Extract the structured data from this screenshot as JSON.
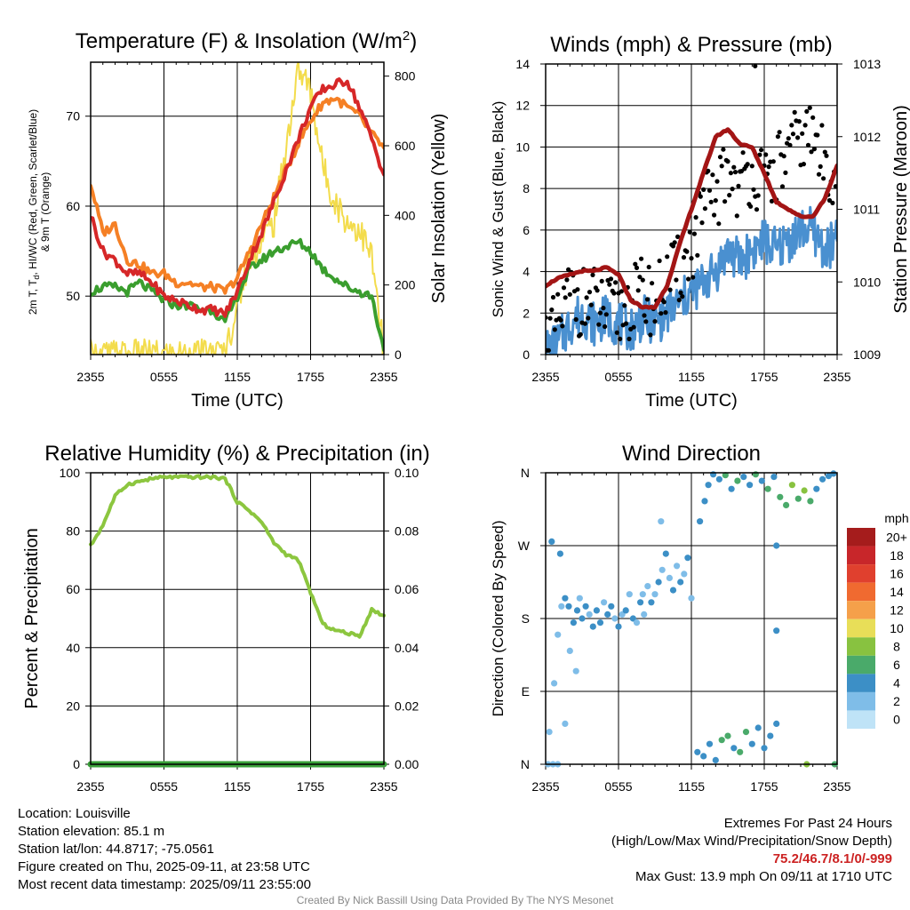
{
  "chart_data": [
    {
      "type": "line",
      "title": "Temperature (F) & Insolation (W/m²)",
      "title_parts": {
        "main": "Temperature (F) & Insolation (W/m",
        "sup": "2",
        "close": ")"
      },
      "xlabel": "Time (UTC)",
      "ylabel_left_lines": [
        "2m T, T",
        "d",
        ", HI/WC (Red, Green, Scarlet/Blue)",
        "& 9m T (Orange)"
      ],
      "ylabel_right": "Solar Insolation (Yellow)",
      "x_ticks": [
        "2355",
        "0555",
        "1155",
        "1755",
        "2355"
      ],
      "x": [
        0,
        1,
        2,
        3,
        4,
        5,
        6,
        7,
        8,
        9,
        10,
        11,
        12,
        13,
        14,
        15,
        16,
        17,
        18,
        19,
        20,
        21,
        22,
        23,
        24
      ],
      "xlim": [
        0,
        24
      ],
      "ylim_left": [
        43.5,
        76
      ],
      "yticks_left": [
        50,
        60,
        70
      ],
      "ylim_right": [
        0,
        840
      ],
      "yticks_right": [
        0,
        200,
        400,
        600,
        800
      ],
      "grid": true,
      "series": [
        {
          "axis": "left",
          "color": "#f58025",
          "values": [
            62.5,
            57,
            58,
            54,
            53.5,
            52.5,
            52.5,
            51.5,
            51.5,
            51,
            51,
            50.5,
            52,
            55,
            58,
            61,
            64,
            67,
            69.5,
            71.5,
            72,
            71,
            70,
            68,
            66.5
          ]
        },
        {
          "axis": "left",
          "color": "#d62728",
          "values": [
            59,
            55,
            54,
            52.5,
            52.5,
            51.5,
            50,
            49.5,
            49,
            48.5,
            48.5,
            48,
            50.5,
            54,
            57,
            60.5,
            64,
            67.5,
            71,
            73,
            73.5,
            74,
            71,
            67.5,
            63.5
          ]
        },
        {
          "axis": "left",
          "color": "#3a9e2e",
          "values": [
            50.5,
            51,
            51,
            50.5,
            51.5,
            50.5,
            49.5,
            49,
            49,
            48.5,
            48.5,
            47,
            50,
            53,
            54,
            55,
            55.5,
            56,
            55,
            53,
            52,
            51,
            50.5,
            50,
            44
          ]
        },
        {
          "axis": "right",
          "color": "#f3dc4c",
          "values": [
            0,
            0,
            0,
            0,
            0,
            0,
            0,
            0,
            0,
            0,
            0,
            5,
            140,
            280,
            330,
            380,
            600,
            820,
            760,
            540,
            440,
            380,
            360,
            280,
            0
          ]
        }
      ]
    },
    {
      "type": "line",
      "title": "Winds (mph) & Pressure (mb)",
      "xlabel": "Time (UTC)",
      "ylabel_left": "Sonic Wind & Gust (Blue, Black)",
      "ylabel_right": "Station Pressure (Maroon)",
      "x_ticks": [
        "2355",
        "0555",
        "1155",
        "1755",
        "2355"
      ],
      "x": [
        0,
        1,
        2,
        3,
        4,
        5,
        6,
        7,
        8,
        9,
        10,
        11,
        12,
        13,
        14,
        15,
        16,
        17,
        18,
        19,
        20,
        21,
        22,
        23,
        24
      ],
      "xlim": [
        0,
        24
      ],
      "ylim_left": [
        0,
        14
      ],
      "yticks_left": [
        0,
        2,
        4,
        6,
        8,
        10,
        12,
        14
      ],
      "ylim_right": [
        1009,
        1013
      ],
      "yticks_right": [
        1009,
        1010,
        1011,
        1012,
        1013
      ],
      "grid": true,
      "series": [
        {
          "name": "Sonic Wind",
          "axis": "left",
          "color": "#4a90d0",
          "values": [
            0.2,
            0.5,
            1.5,
            2,
            1.5,
            1.8,
            1.5,
            1.2,
            1.8,
            1.5,
            2,
            2.5,
            3,
            3.5,
            4,
            5,
            4.5,
            5,
            5.5,
            5,
            5.5,
            6,
            6,
            5,
            5.5
          ]
        },
        {
          "name": "Gust",
          "axis": "left",
          "color": "#000000",
          "values": [
            0.8,
            1.2,
            3,
            2.5,
            2.5,
            2,
            2,
            2.5,
            3,
            2.5,
            3.5,
            4,
            5,
            7,
            7.5,
            9,
            8,
            9,
            8,
            9,
            9.5,
            10.5,
            10.5,
            9,
            9
          ]
        },
        {
          "name": "Station Pressure",
          "axis": "right",
          "color": "#a31515",
          "values": [
            1009.95,
            1010.05,
            1010.1,
            1010.15,
            1010.15,
            1010.2,
            1010.1,
            1009.75,
            1009.65,
            1009.65,
            1009.95,
            1010.5,
            1011,
            1011.5,
            1012,
            1012.1,
            1011.9,
            1011.85,
            1011.5,
            1011.1,
            1011,
            1010.9,
            1010.9,
            1011.15,
            1011.6
          ]
        }
      ],
      "annotation_max_gust": {
        "x": 17.25,
        "y": 13.9
      }
    },
    {
      "type": "line",
      "title": "Relative Humidity (%) & Precipitation (in)",
      "ylabel_left": "Percent & Precipitation",
      "x_ticks": [
        "2355",
        "0555",
        "1155",
        "1755",
        "2355"
      ],
      "x": [
        0,
        1,
        2,
        3,
        4,
        5,
        6,
        7,
        8,
        9,
        10,
        11,
        12,
        13,
        14,
        15,
        16,
        17,
        18,
        19,
        20,
        21,
        22,
        23,
        24
      ],
      "xlim": [
        0,
        24
      ],
      "ylim_left": [
        0,
        100
      ],
      "yticks_left": [
        0,
        20,
        40,
        60,
        80,
        100
      ],
      "ylim_right": [
        0,
        0.1
      ],
      "yticks_right": [
        "0.00",
        "0.02",
        "0.04",
        "0.06",
        "0.08",
        "0.10"
      ],
      "grid": true,
      "series": [
        {
          "name": "Relative Humidity",
          "axis": "left",
          "color": "#8cc63f",
          "values": [
            75,
            82,
            92,
            96,
            97,
            98,
            98.5,
            98.5,
            98.5,
            98.5,
            98.5,
            98,
            90,
            87,
            83,
            76,
            72,
            70,
            59,
            48,
            46,
            45,
            44,
            53,
            51
          ]
        },
        {
          "name": "Precipitation",
          "axis": "right",
          "color": "#3aa03a",
          "values": [
            0,
            0,
            0,
            0,
            0,
            0,
            0,
            0,
            0,
            0,
            0,
            0,
            0,
            0,
            0,
            0,
            0,
            0,
            0,
            0,
            0,
            0,
            0,
            0,
            0
          ]
        }
      ]
    },
    {
      "type": "scatter",
      "title": "Wind Direction",
      "ylabel_left": "Direction (Colored By Speed)",
      "x_ticks": [
        "2355",
        "0555",
        "1155",
        "1755",
        "2355"
      ],
      "xlim": [
        0,
        24
      ],
      "yticks_labels": [
        "N",
        "E",
        "S",
        "W",
        "N"
      ],
      "ylim_degrees": [
        0,
        360
      ],
      "grid": true,
      "points": [
        [
          0.2,
          0,
          1
        ],
        [
          0.6,
          0,
          1
        ],
        [
          1.0,
          0,
          1
        ],
        [
          0.3,
          40,
          1
        ],
        [
          0.7,
          100,
          1
        ],
        [
          1.0,
          160,
          2
        ],
        [
          1.3,
          195,
          2
        ],
        [
          1.6,
          205,
          3
        ],
        [
          1.9,
          195,
          3
        ],
        [
          2.0,
          140,
          2
        ],
        [
          2.3,
          175,
          3
        ],
        [
          2.6,
          190,
          3
        ],
        [
          2.8,
          205,
          2
        ],
        [
          3.0,
          180,
          3
        ],
        [
          3.3,
          195,
          3
        ],
        [
          3.6,
          185,
          2
        ],
        [
          3.9,
          170,
          3
        ],
        [
          4.2,
          190,
          3
        ],
        [
          4.5,
          175,
          3
        ],
        [
          4.8,
          200,
          2
        ],
        [
          5.1,
          185,
          3
        ],
        [
          5.4,
          195,
          3
        ],
        [
          5.7,
          180,
          2
        ],
        [
          6.0,
          170,
          3
        ],
        [
          6.3,
          185,
          2
        ],
        [
          6.6,
          190,
          3
        ],
        [
          6.9,
          210,
          2
        ],
        [
          7.2,
          180,
          3
        ],
        [
          7.5,
          175,
          2
        ],
        [
          7.8,
          200,
          3
        ],
        [
          8.1,
          185,
          2
        ],
        [
          8.4,
          220,
          2
        ],
        [
          8.7,
          200,
          3
        ],
        [
          9.0,
          210,
          2
        ],
        [
          9.3,
          225,
          3
        ],
        [
          9.6,
          240,
          2
        ],
        [
          9.9,
          260,
          3
        ],
        [
          10.2,
          230,
          2
        ],
        [
          10.5,
          215,
          3
        ],
        [
          10.8,
          245,
          2
        ],
        [
          11.1,
          225,
          3
        ],
        [
          11.4,
          235,
          2
        ],
        [
          11.7,
          255,
          3
        ],
        [
          1.2,
          260,
          3
        ],
        [
          0.5,
          275,
          3
        ],
        [
          1.6,
          50,
          2
        ],
        [
          2.5,
          115,
          2
        ],
        [
          8.0,
          210,
          2
        ],
        [
          12.0,
          205,
          2
        ],
        [
          9.5,
          300,
          1
        ],
        [
          12.5,
          15,
          4
        ],
        [
          13.0,
          10,
          4
        ],
        [
          13.5,
          25,
          4
        ],
        [
          14.0,
          5,
          4
        ],
        [
          14.5,
          30,
          6
        ],
        [
          15.0,
          35,
          6
        ],
        [
          15.5,
          20,
          4
        ],
        [
          16.0,
          15,
          6
        ],
        [
          16.5,
          40,
          5
        ],
        [
          17.0,
          25,
          4
        ],
        [
          17.5,
          45,
          4
        ],
        [
          18.0,
          20,
          4
        ],
        [
          18.5,
          35,
          3
        ],
        [
          19.0,
          50,
          3
        ],
        [
          12.7,
          300,
          4
        ],
        [
          13.1,
          325,
          4
        ],
        [
          13.4,
          345,
          4
        ],
        [
          13.8,
          358,
          4
        ],
        [
          14.3,
          352,
          4
        ],
        [
          14.8,
          357,
          6
        ],
        [
          15.3,
          340,
          4
        ],
        [
          15.8,
          350,
          6
        ],
        [
          16.3,
          355,
          4
        ],
        [
          16.8,
          345,
          4
        ],
        [
          17.3,
          358,
          6
        ],
        [
          17.8,
          350,
          4
        ],
        [
          18.3,
          340,
          6
        ],
        [
          18.8,
          355,
          4
        ],
        [
          19.3,
          330,
          6
        ],
        [
          19.8,
          320,
          6
        ],
        [
          20.3,
          345,
          7
        ],
        [
          20.8,
          328,
          6
        ],
        [
          21.3,
          338,
          7
        ],
        [
          21.8,
          325,
          6
        ],
        [
          22.3,
          340,
          4
        ],
        [
          22.8,
          352,
          4
        ],
        [
          23.3,
          356,
          4
        ],
        [
          23.7,
          359,
          3
        ],
        [
          19.0,
          270,
          3
        ],
        [
          19.0,
          165,
          3
        ],
        [
          21.5,
          0,
          7
        ],
        [
          23.8,
          0,
          5
        ]
      ],
      "colorbar": {
        "unit_label": "mph",
        "labels": [
          "20+",
          "18",
          "16",
          "14",
          "12",
          "10",
          "8",
          "6",
          "4",
          "2",
          "0"
        ],
        "colors": [
          "#a51c1c",
          "#c8262a",
          "#e0402e",
          "#f06a30",
          "#f5a04a",
          "#e8de58",
          "#88c240",
          "#4aaa6a",
          "#3c8fc6",
          "#7fbde8",
          "#bfe3f7"
        ]
      }
    }
  ],
  "info_left": {
    "location": "Location: Louisville",
    "elevation": "Station elevation: 85.1 m",
    "latlon": "Station lat/lon: 44.8717; -75.0561",
    "created": "Figure created on Thu, 2025-09-11, at 23:58 UTC",
    "recent": "Most recent data timestamp: 2025/09/11 23:55:00"
  },
  "info_right": {
    "heading": "Extremes For Past 24 Hours",
    "legend": "(High/Low/Max Wind/Precipitation/Snow Depth)",
    "values": "75.2/46.7/8.1/0/-999",
    "max_gust": "Max Gust: 13.9 mph On 09/11 at 1710 UTC"
  },
  "credit": "Created By Nick Bassill Using Data Provided By The NYS Mesonet"
}
